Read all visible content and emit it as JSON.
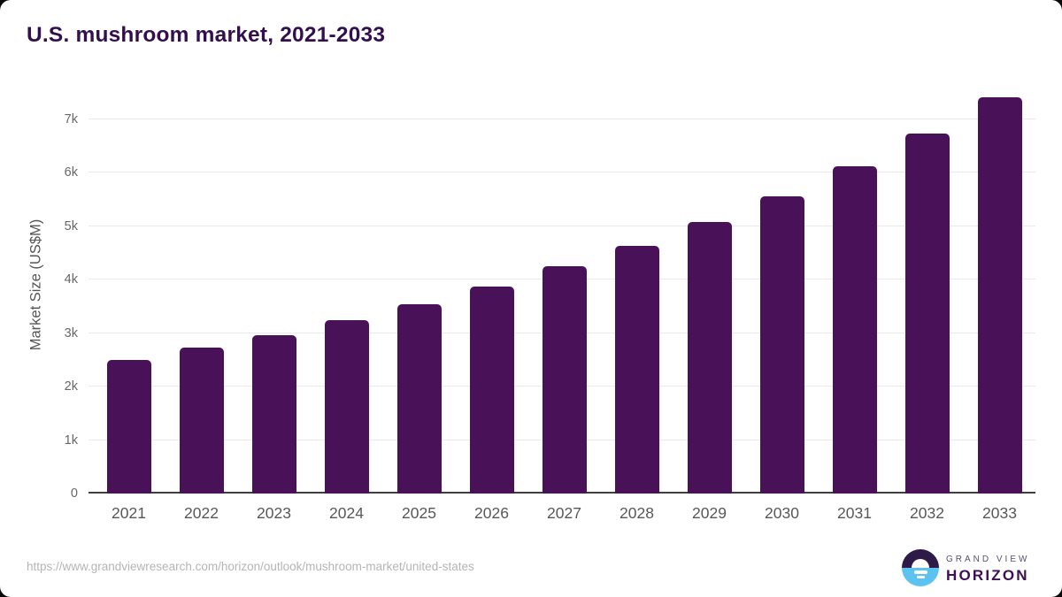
{
  "chart_data": {
    "type": "bar",
    "title": "U.S. mushroom market, 2021-2033",
    "xlabel": "",
    "ylabel": "Market Size (US$M)",
    "categories": [
      "2021",
      "2022",
      "2023",
      "2024",
      "2025",
      "2026",
      "2027",
      "2028",
      "2029",
      "2030",
      "2031",
      "2032",
      "2033"
    ],
    "values": [
      2500,
      2730,
      2960,
      3240,
      3540,
      3870,
      4240,
      4630,
      5070,
      5550,
      6110,
      6720,
      7400
    ],
    "units": "US$M",
    "ylim": [
      0,
      7570
    ],
    "yticks": [
      {
        "value": 0,
        "label": "0"
      },
      {
        "value": 1000,
        "label": "1k"
      },
      {
        "value": 2000,
        "label": "2k"
      },
      {
        "value": 3000,
        "label": "3k"
      },
      {
        "value": 4000,
        "label": "4k"
      },
      {
        "value": 5000,
        "label": "5k"
      },
      {
        "value": 6000,
        "label": "6k"
      },
      {
        "value": 7000,
        "label": "7k"
      }
    ],
    "grid": "horizontal",
    "legend": "none"
  },
  "colors": {
    "bar": "#491158",
    "title": "#33104d",
    "axis_text": "#676767",
    "x_axis_text": "#585858",
    "gridline": "#eaeaea",
    "axis_line": "#3f3f3f",
    "url_text": "#b5b5b5",
    "logo_dark": "#2e1a47",
    "logo_blue": "#5cc3f1",
    "logo_grand_view": "#565072",
    "logo_horizon": "#3d1056"
  },
  "footer": {
    "source_url": "https://www.grandviewresearch.com/horizon/outlook/mushroom-market/united-states",
    "logo": {
      "line1": "GRAND VIEW",
      "line2": "HORIZON"
    }
  }
}
